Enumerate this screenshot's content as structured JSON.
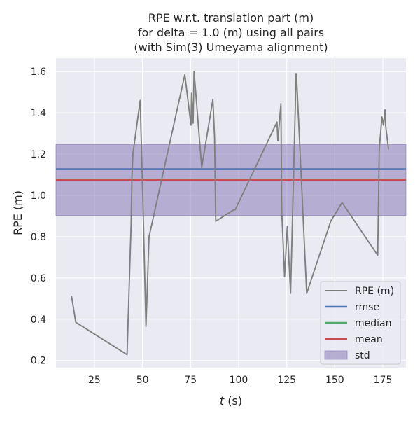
{
  "chart_data": {
    "type": "line",
    "title_lines": [
      "RPE w.r.t. translation part (m)",
      "for delta = 1.0 (m) using all pairs",
      "(with Sim(3) Umeyama alignment)"
    ],
    "xlabel_var": "t",
    "xlabel_unit": " (s)",
    "ylabel": "RPE (m)",
    "xlim": [
      5,
      187
    ],
    "ylim": [
      0.165,
      1.665
    ],
    "xticks": [
      25,
      50,
      75,
      100,
      125,
      150,
      175
    ],
    "yticks": [
      0.2,
      0.4,
      0.6,
      0.8,
      1.0,
      1.2,
      1.4,
      1.6
    ],
    "ytick_labels": [
      "0.2",
      "0.4",
      "0.6",
      "0.8",
      "1.0",
      "1.2",
      "1.4",
      "1.6"
    ],
    "grid": true,
    "legend_position": "lower-right",
    "series": [
      {
        "name": "RPE (m)",
        "color": "#808080",
        "x": [
          13.1,
          15.3,
          42.0,
          44.1,
          44.5,
          45.0,
          48.8,
          49.9,
          51.8,
          53.4,
          72.0,
          75.2,
          75.5,
          76.3,
          76.8,
          80.8,
          86.6,
          87.5,
          88.1,
          97.5,
          98.2,
          119.9,
          120.4,
          122.0,
          122.4,
          123.9,
          125.3,
          127.0,
          129.9,
          130.1,
          135.4,
          147.9,
          153.8,
          172.3,
          173.1,
          174.5,
          175.3,
          176.1,
          176.4,
          177.9
        ],
        "y": [
          0.51,
          0.385,
          0.228,
          0.865,
          1.08,
          1.2,
          1.46,
          1.08,
          0.365,
          0.8,
          1.585,
          1.34,
          1.495,
          1.35,
          1.6,
          1.135,
          1.465,
          1.28,
          0.875,
          0.93,
          0.93,
          1.355,
          1.265,
          1.445,
          0.93,
          0.605,
          0.85,
          0.525,
          1.59,
          1.575,
          0.525,
          0.875,
          0.965,
          0.71,
          1.22,
          1.38,
          1.34,
          1.415,
          1.34,
          1.225
        ]
      }
    ],
    "stats": [
      {
        "name": "rmse",
        "value": 1.127,
        "color": "#4c72b0"
      },
      {
        "name": "median",
        "value": 1.075,
        "color": "#55a868"
      },
      {
        "name": "mean",
        "value": 1.075,
        "color": "#c44e52"
      }
    ],
    "std_band": {
      "name": "std",
      "low": 0.903,
      "high": 1.247,
      "color": "#8172b2"
    },
    "colors": {
      "background": "#ffffff",
      "plot_bg": "#eaeaf2",
      "grid": "#ffffff",
      "legend_frame": "#cccccc"
    }
  }
}
